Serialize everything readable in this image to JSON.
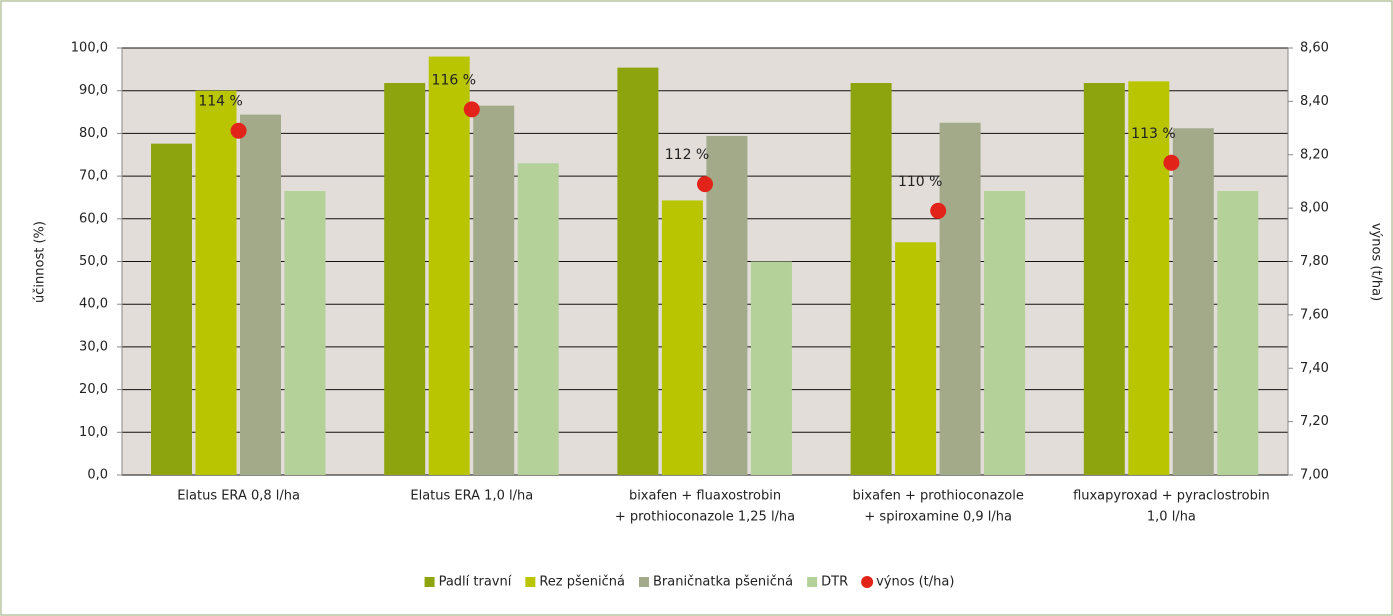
{
  "chart_data": {
    "type": "bar",
    "categories": [
      [
        "Elatus ERA 0,8 l/ha"
      ],
      [
        "Elatus ERA 1,0 l/ha"
      ],
      [
        "bixafen + fluaxostrobin",
        "+ prothioconazole 1,25 l/ha"
      ],
      [
        "bixafen + prothioconazole",
        "+ spiroxamine 0,9 l/ha"
      ],
      [
        "fluxapyroxad + pyraclostrobin",
        "1,0 l/ha"
      ]
    ],
    "series": [
      {
        "name": "Padlí travní",
        "color": "#8ea40e",
        "values": [
          77.6,
          91.8,
          95.4,
          91.8,
          91.8
        ]
      },
      {
        "name": "Rez pšeničná",
        "color": "#b8c500",
        "values": [
          90.0,
          98.0,
          64.3,
          54.5,
          92.2
        ]
      },
      {
        "name": "Braničnatka pšeničná",
        "color": "#a2aa8a",
        "values": [
          84.4,
          86.5,
          79.4,
          82.5,
          81.2
        ]
      },
      {
        "name": "DTR",
        "color": "#b3d198",
        "values": [
          66.5,
          73.0,
          50.0,
          66.5,
          66.5
        ]
      },
      {
        "name": "výnos (t/ha)",
        "color": "#e2231a",
        "type": "scatter",
        "axis": "y2",
        "values": [
          8.29,
          8.37,
          8.09,
          7.99,
          8.17
        ]
      }
    ],
    "annotations": [
      "114 %",
      "116 %",
      "112 %",
      "110 %",
      "113 %"
    ],
    "ylabel": "účinnost (%)",
    "y2label": "výnos (t/ha)",
    "ylim": [
      0,
      100
    ],
    "yticks": [
      {
        "value": 0,
        "label": "0,0"
      },
      {
        "value": 10,
        "label": "10,0"
      },
      {
        "value": 20,
        "label": "20,0"
      },
      {
        "value": 30,
        "label": "30,0"
      },
      {
        "value": 40,
        "label": "40,0"
      },
      {
        "value": 50,
        "label": "50,0"
      },
      {
        "value": 60,
        "label": "60,0"
      },
      {
        "value": 70,
        "label": "70,0"
      },
      {
        "value": 80,
        "label": "80,0"
      },
      {
        "value": 90,
        "label": "90,0"
      },
      {
        "value": 100,
        "label": "100,0"
      }
    ],
    "y2lim": [
      7.0,
      8.6
    ],
    "y2ticks": [
      {
        "value": 7.0,
        "label": "7,00"
      },
      {
        "value": 7.2,
        "label": "7,20"
      },
      {
        "value": 7.4,
        "label": "7,40"
      },
      {
        "value": 7.6,
        "label": "7,60"
      },
      {
        "value": 7.8,
        "label": "7,80"
      },
      {
        "value": 8.0,
        "label": "8,00"
      },
      {
        "value": 8.2,
        "label": "8,20"
      },
      {
        "value": 8.4,
        "label": "8,40"
      },
      {
        "value": 8.6,
        "label": "8,60"
      }
    ],
    "grid": true,
    "plot_background": "#e2ddd9",
    "legend": "bottom"
  }
}
